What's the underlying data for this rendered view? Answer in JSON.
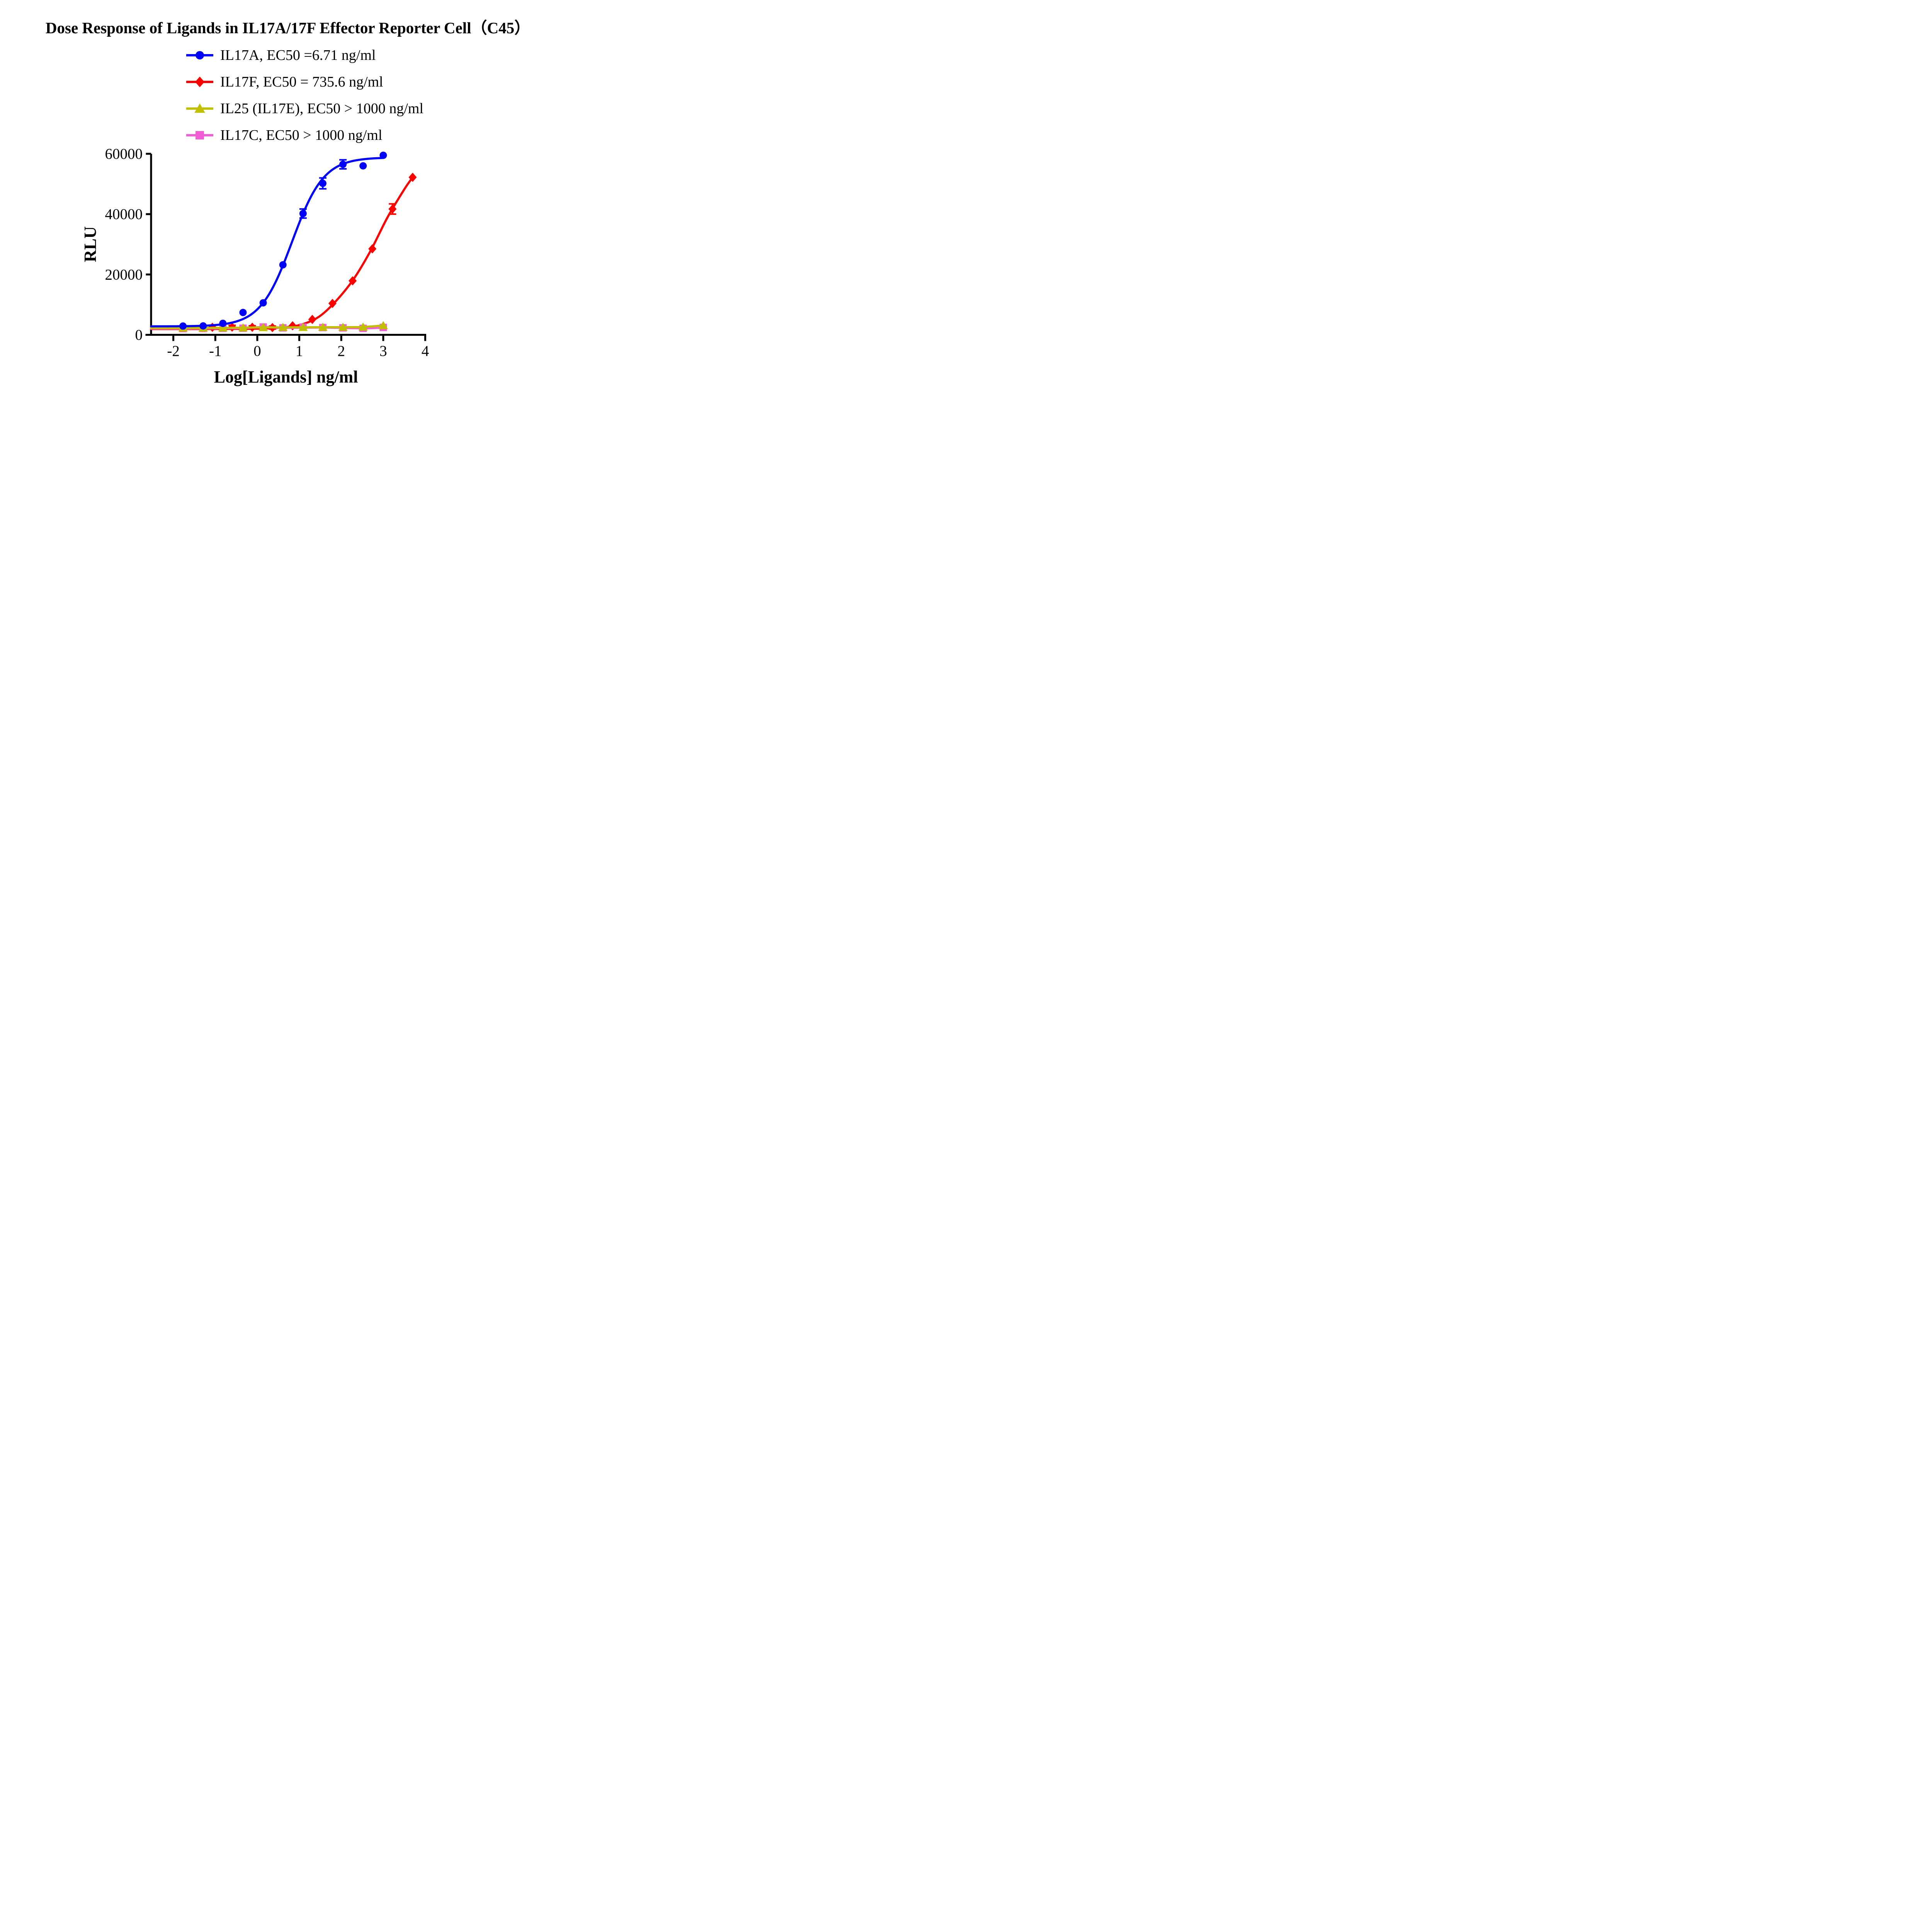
{
  "title": "Dose Response of Ligands in IL17A/17F Effector Reporter Cell（C45）",
  "legend": {
    "items": [
      {
        "label": "IL17A, EC50 =6.71 ng/ml",
        "marker": "circle",
        "color": "#0000FF"
      },
      {
        "label": "IL17F, EC50 = 735.6 ng/ml",
        "marker": "diamond",
        "color": "#FF0000"
      },
      {
        "label": "IL25 (IL17E), EC50 > 1000 ng/ml",
        "marker": "triangle",
        "color": "#C0C000"
      },
      {
        "label": "IL17C, EC50 > 1000 ng/ml",
        "marker": "square",
        "color": "#F25CD5"
      }
    ]
  },
  "chart_data": {
    "type": "scatter",
    "subtype": "dose-response curves with fitted sigmoids and error bars",
    "title": "Dose Response of Ligands in IL17A/17F Effector Reporter Cell（C45）",
    "xlabel": "Log[Ligands] ng/ml",
    "ylabel": "RLU",
    "xlim": [
      -2.53,
      4
    ],
    "ylim": [
      0,
      60000
    ],
    "x_ticks": [
      -2,
      -1,
      0,
      1,
      2,
      3,
      4
    ],
    "y_ticks": [
      0,
      20000,
      40000,
      60000
    ],
    "grid": "off",
    "legend_position": "top-center above plot",
    "series": [
      {
        "name": "IL17F",
        "ec50_label": "EC50 = 735.6 ng/ml",
        "color": "#FF0000",
        "marker": "diamond",
        "x": [
          -1.07,
          -0.6,
          -0.12,
          0.36,
          0.84,
          1.31,
          1.79,
          2.27,
          2.74,
          3.22,
          3.7
        ],
        "y": [
          2500,
          2550,
          2500,
          2400,
          3000,
          5100,
          10400,
          17900,
          28500,
          41700,
          52200
        ],
        "err": [
          600,
          600,
          500,
          500,
          0,
          0,
          0,
          0,
          0,
          1700,
          0
        ],
        "curve": [
          [
            -2.53,
            1900
          ],
          [
            -1.8,
            1905
          ],
          [
            -1.0,
            1920
          ],
          [
            -0.3,
            1980
          ],
          [
            0.2,
            2120
          ],
          [
            0.7,
            2550
          ],
          [
            1.1,
            3600
          ],
          [
            1.5,
            6300
          ],
          [
            1.9,
            11600
          ],
          [
            2.3,
            18600
          ],
          [
            2.7,
            27900
          ],
          [
            3.1,
            38900
          ],
          [
            3.5,
            48200
          ],
          [
            3.7,
            52200
          ]
        ]
      },
      {
        "name": "IL17C",
        "ec50_label": "EC50 > 1000 ng/ml",
        "color": "#F25CD5",
        "marker": "square",
        "x": [
          -1.77,
          -1.29,
          -0.82,
          -0.34,
          0.14,
          0.61,
          1.09,
          1.56,
          2.04,
          2.52,
          3.0
        ],
        "y": [
          2050,
          2100,
          2150,
          2200,
          2600,
          2300,
          2550,
          2400,
          2300,
          2150,
          2450
        ],
        "err": [
          0,
          0,
          0,
          0,
          0,
          0,
          0,
          0,
          0,
          0,
          0
        ],
        "curve": [
          [
            -2.53,
            2050
          ],
          [
            -1.77,
            2050
          ],
          [
            -0.82,
            2150
          ],
          [
            -0.34,
            2200
          ],
          [
            0.14,
            2600
          ],
          [
            0.61,
            2300
          ],
          [
            1.56,
            2400
          ],
          [
            2.52,
            2150
          ],
          [
            3.0,
            2400
          ]
        ]
      },
      {
        "name": "IL25 (IL17E)",
        "ec50_label": "EC50 > 1000 ng/ml",
        "color": "#C0C000",
        "marker": "triangle",
        "x": [
          -1.77,
          -1.29,
          -0.82,
          -0.34,
          0.14,
          0.61,
          1.09,
          1.56,
          2.04,
          2.52,
          3.0
        ],
        "y": [
          2250,
          2250,
          2300,
          2350,
          2450,
          2500,
          2500,
          2550,
          2550,
          2600,
          3100
        ],
        "err": [
          0,
          0,
          0,
          0,
          0,
          0,
          0,
          0,
          0,
          0,
          0
        ],
        "curve": [
          [
            -2.53,
            2250
          ],
          [
            -1.77,
            2250
          ],
          [
            -0.82,
            2300
          ],
          [
            0.14,
            2450
          ],
          [
            1.09,
            2500
          ],
          [
            2.04,
            2550
          ],
          [
            2.52,
            2600
          ],
          [
            3.0,
            3100
          ]
        ]
      },
      {
        "name": "IL17A",
        "ec50_label": "EC50 =6.71 ng/ml",
        "color": "#0000FF",
        "marker": "circle",
        "x": [
          -1.77,
          -1.29,
          -0.82,
          -0.34,
          0.14,
          0.61,
          1.09,
          1.56,
          2.04,
          2.52,
          3.0
        ],
        "y": [
          2900,
          2950,
          3800,
          7400,
          10600,
          23200,
          40200,
          50200,
          56500,
          56000,
          59500
        ],
        "err": [
          0,
          0,
          0,
          0,
          0,
          0,
          1500,
          1800,
          1500,
          0,
          0
        ],
        "fit": {
          "type": "4PL",
          "bottom": 2800,
          "top": 58800,
          "logEC50": 0.8267,
          "hill": 1.15,
          "range": [
            -2.53,
            3.0
          ]
        }
      }
    ]
  }
}
